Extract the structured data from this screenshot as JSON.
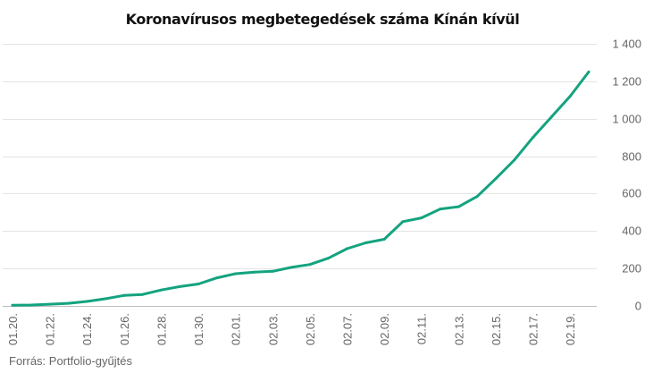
{
  "chart_data": {
    "type": "line",
    "title": "Koronavírusos megbetegedések száma Kínán kívül",
    "x": [
      "01.20.",
      "01.21.",
      "01.22.",
      "01.23.",
      "01.24.",
      "01.25.",
      "01.26.",
      "01.27.",
      "01.28.",
      "01.29.",
      "01.30.",
      "01.31.",
      "02.01.",
      "02.02.",
      "02.03.",
      "02.04.",
      "02.05.",
      "02.06.",
      "02.07.",
      "02.08.",
      "02.09.",
      "02.10.",
      "02.11.",
      "02.12.",
      "02.13.",
      "02.14.",
      "02.15.",
      "02.16.",
      "02.17.",
      "02.18.",
      "02.19.",
      "02.20."
    ],
    "x_tick_labels": [
      "01.20.",
      "01.22.",
      "01.24.",
      "01.26.",
      "01.28.",
      "01.30.",
      "02.01.",
      "02.03.",
      "02.05.",
      "02.07.",
      "02.09.",
      "02.11.",
      "02.13.",
      "02.15.",
      "02.17.",
      "02.19."
    ],
    "series": [
      {
        "values": [
          4,
          5,
          9,
          14,
          24,
          38,
          56,
          61,
          85,
          103,
          117,
          150,
          172,
          180,
          185,
          206,
          221,
          255,
          306,
          337,
          356,
          450,
          470,
          517,
          530,
          585,
          680,
          780,
          900,
          1010,
          1120,
          1250
        ],
        "color": "#14a37f"
      }
    ],
    "ylim": [
      0,
      1400
    ],
    "yticks": [
      0,
      200,
      400,
      600,
      800,
      1000,
      1200,
      1400
    ],
    "ytick_labels": [
      "0",
      "200",
      "400",
      "600",
      "800",
      "1 000",
      "1 200",
      "1 400"
    ],
    "y_axis_side": "right",
    "grid": true,
    "xlabel": "",
    "ylabel": ""
  },
  "source": "Forrás: Portfolio-gyűjtés"
}
